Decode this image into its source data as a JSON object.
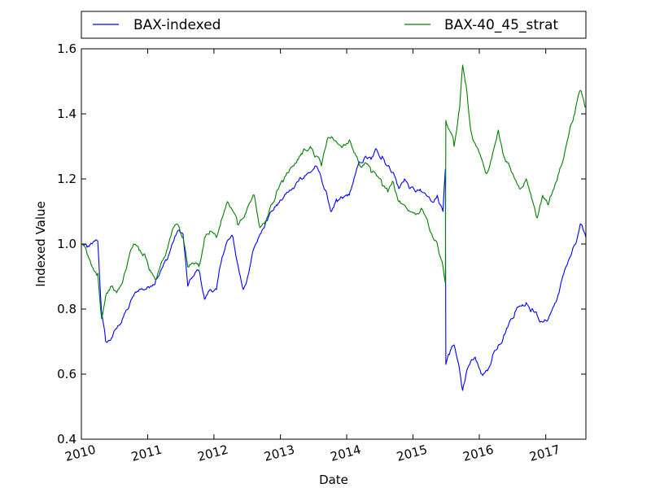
{
  "chart_data": {
    "type": "line",
    "title": "",
    "xlabel": "Date",
    "ylabel": "Indexed Value",
    "xlim": [
      "2010-01-01",
      "2017-08-10"
    ],
    "ylim": [
      0.4,
      1.6
    ],
    "y_ticks": [
      "0.4",
      "0.6",
      "0.8",
      "1.0",
      "1.2",
      "1.4",
      "1.6"
    ],
    "x_ticks": [
      {
        "label": "2010",
        "date": "2010-01-01"
      },
      {
        "label": "2011",
        "date": "2011-01-01"
      },
      {
        "label": "2012",
        "date": "2012-01-01"
      },
      {
        "label": "2013",
        "date": "2013-01-01"
      },
      {
        "label": "2014",
        "date": "2014-01-01"
      },
      {
        "label": "2015",
        "date": "2015-01-01"
      },
      {
        "label": "2016",
        "date": "2016-01-01"
      },
      {
        "label": "2017",
        "date": "2017-01-01"
      }
    ],
    "grid": false,
    "legend": "top, above plot, two columns",
    "series": [
      {
        "name": "BAX-indexed",
        "color": "#0000ff",
        "points": [
          [
            "2010-01-01",
            1.0
          ],
          [
            "2010-02-01",
            0.99
          ],
          [
            "2010-03-01",
            1.0
          ],
          [
            "2010-04-01",
            1.01
          ],
          [
            "2010-04-22",
            0.79
          ],
          [
            "2010-05-15",
            0.7
          ],
          [
            "2010-06-15",
            0.71
          ],
          [
            "2010-07-15",
            0.74
          ],
          [
            "2010-08-15",
            0.77
          ],
          [
            "2010-09-15",
            0.8
          ],
          [
            "2010-10-15",
            0.84
          ],
          [
            "2010-11-15",
            0.86
          ],
          [
            "2010-12-15",
            0.86
          ],
          [
            "2011-01-15",
            0.87
          ],
          [
            "2011-02-15",
            0.89
          ],
          [
            "2011-03-15",
            0.92
          ],
          [
            "2011-04-15",
            0.95
          ],
          [
            "2011-05-15",
            1.0
          ],
          [
            "2011-06-15",
            1.04
          ],
          [
            "2011-07-15",
            1.03
          ],
          [
            "2011-08-10",
            0.87
          ],
          [
            "2011-09-10",
            0.9
          ],
          [
            "2011-10-10",
            0.92
          ],
          [
            "2011-11-10",
            0.83
          ],
          [
            "2011-12-10",
            0.86
          ],
          [
            "2012-01-15",
            0.86
          ],
          [
            "2012-02-15",
            0.96
          ],
          [
            "2012-03-15",
            1.01
          ],
          [
            "2012-04-15",
            1.02
          ],
          [
            "2012-05-10",
            0.94
          ],
          [
            "2012-06-10",
            0.86
          ],
          [
            "2012-07-10",
            0.91
          ],
          [
            "2012-08-10",
            0.99
          ],
          [
            "2012-09-10",
            1.03
          ],
          [
            "2012-10-10",
            1.07
          ],
          [
            "2012-11-10",
            1.1
          ],
          [
            "2012-12-10",
            1.12
          ],
          [
            "2013-01-15",
            1.14
          ],
          [
            "2013-02-15",
            1.16
          ],
          [
            "2013-03-15",
            1.17
          ],
          [
            "2013-04-15",
            1.2
          ],
          [
            "2013-05-15",
            1.21
          ],
          [
            "2013-06-15",
            1.22
          ],
          [
            "2013-07-15",
            1.24
          ],
          [
            "2013-08-15",
            1.2
          ],
          [
            "2013-09-15",
            1.15
          ],
          [
            "2013-10-10",
            1.1
          ],
          [
            "2013-11-10",
            1.13
          ],
          [
            "2013-12-10",
            1.14
          ],
          [
            "2014-01-15",
            1.15
          ],
          [
            "2014-02-15",
            1.21
          ],
          [
            "2014-03-15",
            1.25
          ],
          [
            "2014-04-15",
            1.27
          ],
          [
            "2014-05-15",
            1.26
          ],
          [
            "2014-06-15",
            1.29
          ],
          [
            "2014-07-15",
            1.27
          ],
          [
            "2014-08-15",
            1.24
          ],
          [
            "2014-09-15",
            1.22
          ],
          [
            "2014-10-15",
            1.17
          ],
          [
            "2014-11-15",
            1.2
          ],
          [
            "2014-12-15",
            1.17
          ],
          [
            "2015-01-15",
            1.16
          ],
          [
            "2015-02-15",
            1.16
          ],
          [
            "2015-03-15",
            1.15
          ],
          [
            "2015-04-15",
            1.13
          ],
          [
            "2015-05-15",
            1.15
          ],
          [
            "2015-06-15",
            1.1
          ],
          [
            "2015-06-28",
            1.23
          ],
          [
            "2015-07-01",
            0.63
          ],
          [
            "2015-07-20",
            0.66
          ],
          [
            "2015-08-15",
            0.69
          ],
          [
            "2015-09-15",
            0.61
          ],
          [
            "2015-10-01",
            0.55
          ],
          [
            "2015-10-20",
            0.6
          ],
          [
            "2015-11-15",
            0.64
          ],
          [
            "2015-12-15",
            0.64
          ],
          [
            "2016-01-15",
            0.6
          ],
          [
            "2016-02-15",
            0.61
          ],
          [
            "2016-03-15",
            0.66
          ],
          [
            "2016-04-15",
            0.69
          ],
          [
            "2016-05-15",
            0.72
          ],
          [
            "2016-06-15",
            0.76
          ],
          [
            "2016-07-15",
            0.79
          ],
          [
            "2016-08-15",
            0.81
          ],
          [
            "2016-09-15",
            0.82
          ],
          [
            "2016-10-15",
            0.8
          ],
          [
            "2016-11-15",
            0.78
          ],
          [
            "2016-12-15",
            0.76
          ],
          [
            "2017-01-15",
            0.77
          ],
          [
            "2017-02-15",
            0.81
          ],
          [
            "2017-03-15",
            0.85
          ],
          [
            "2017-04-15",
            0.92
          ],
          [
            "2017-05-15",
            0.96
          ],
          [
            "2017-06-15",
            1.0
          ],
          [
            "2017-07-15",
            1.06
          ],
          [
            "2017-08-10",
            1.02
          ]
        ]
      },
      {
        "name": "BAX-40_45_strat",
        "color": "#008000",
        "points": [
          [
            "2010-01-01",
            1.0
          ],
          [
            "2010-02-01",
            0.97
          ],
          [
            "2010-03-01",
            0.93
          ],
          [
            "2010-04-01",
            0.91
          ],
          [
            "2010-04-22",
            0.77
          ],
          [
            "2010-05-15",
            0.84
          ],
          [
            "2010-06-15",
            0.87
          ],
          [
            "2010-07-15",
            0.85
          ],
          [
            "2010-08-15",
            0.88
          ],
          [
            "2010-09-15",
            0.95
          ],
          [
            "2010-10-15",
            1.0
          ],
          [
            "2010-11-15",
            0.98
          ],
          [
            "2010-12-15",
            0.97
          ],
          [
            "2011-01-15",
            0.92
          ],
          [
            "2011-02-15",
            0.89
          ],
          [
            "2011-03-15",
            0.94
          ],
          [
            "2011-04-15",
            0.98
          ],
          [
            "2011-05-15",
            1.04
          ],
          [
            "2011-06-15",
            1.06
          ],
          [
            "2011-07-15",
            1.02
          ],
          [
            "2011-08-10",
            0.93
          ],
          [
            "2011-09-10",
            0.94
          ],
          [
            "2011-10-10",
            0.93
          ],
          [
            "2011-11-10",
            1.02
          ],
          [
            "2011-12-10",
            1.04
          ],
          [
            "2012-01-15",
            1.02
          ],
          [
            "2012-02-15",
            1.08
          ],
          [
            "2012-03-15",
            1.13
          ],
          [
            "2012-04-15",
            1.1
          ],
          [
            "2012-05-10",
            1.06
          ],
          [
            "2012-06-10",
            1.08
          ],
          [
            "2012-07-10",
            1.12
          ],
          [
            "2012-08-10",
            1.15
          ],
          [
            "2012-09-10",
            1.05
          ],
          [
            "2012-10-10",
            1.06
          ],
          [
            "2012-11-10",
            1.12
          ],
          [
            "2012-12-10",
            1.16
          ],
          [
            "2013-01-15",
            1.19
          ],
          [
            "2013-02-15",
            1.22
          ],
          [
            "2013-03-15",
            1.24
          ],
          [
            "2013-04-15",
            1.27
          ],
          [
            "2013-05-15",
            1.29
          ],
          [
            "2013-06-15",
            1.3
          ],
          [
            "2013-07-15",
            1.27
          ],
          [
            "2013-08-15",
            1.24
          ],
          [
            "2013-09-15",
            1.32
          ],
          [
            "2013-10-10",
            1.33
          ],
          [
            "2013-11-10",
            1.31
          ],
          [
            "2013-12-10",
            1.3
          ],
          [
            "2014-01-15",
            1.32
          ],
          [
            "2014-02-15",
            1.28
          ],
          [
            "2014-03-15",
            1.24
          ],
          [
            "2014-04-15",
            1.25
          ],
          [
            "2014-05-15",
            1.22
          ],
          [
            "2014-06-15",
            1.21
          ],
          [
            "2014-07-15",
            1.18
          ],
          [
            "2014-08-15",
            1.16
          ],
          [
            "2014-09-15",
            1.19
          ],
          [
            "2014-10-15",
            1.13
          ],
          [
            "2014-11-15",
            1.12
          ],
          [
            "2014-12-15",
            1.1
          ],
          [
            "2015-01-15",
            1.09
          ],
          [
            "2015-02-15",
            1.11
          ],
          [
            "2015-03-15",
            1.08
          ],
          [
            "2015-04-15",
            1.03
          ],
          [
            "2015-05-15",
            1.0
          ],
          [
            "2015-06-15",
            0.93
          ],
          [
            "2015-06-28",
            0.88
          ],
          [
            "2015-07-01",
            1.38
          ],
          [
            "2015-07-20",
            1.35
          ],
          [
            "2015-08-15",
            1.3
          ],
          [
            "2015-09-15",
            1.42
          ],
          [
            "2015-10-01",
            1.55
          ],
          [
            "2015-10-20",
            1.49
          ],
          [
            "2015-11-15",
            1.35
          ],
          [
            "2015-12-15",
            1.3
          ],
          [
            "2016-01-15",
            1.26
          ],
          [
            "2016-02-15",
            1.22
          ],
          [
            "2016-03-15",
            1.28
          ],
          [
            "2016-04-15",
            1.35
          ],
          [
            "2016-05-15",
            1.27
          ],
          [
            "2016-06-15",
            1.24
          ],
          [
            "2016-07-15",
            1.2
          ],
          [
            "2016-08-15",
            1.17
          ],
          [
            "2016-09-15",
            1.2
          ],
          [
            "2016-10-15",
            1.14
          ],
          [
            "2016-11-15",
            1.08
          ],
          [
            "2016-12-15",
            1.15
          ],
          [
            "2017-01-15",
            1.12
          ],
          [
            "2017-02-15",
            1.17
          ],
          [
            "2017-03-15",
            1.22
          ],
          [
            "2017-04-15",
            1.28
          ],
          [
            "2017-05-15",
            1.36
          ],
          [
            "2017-06-15",
            1.42
          ],
          [
            "2017-07-15",
            1.47
          ],
          [
            "2017-08-10",
            1.42
          ]
        ]
      }
    ]
  }
}
